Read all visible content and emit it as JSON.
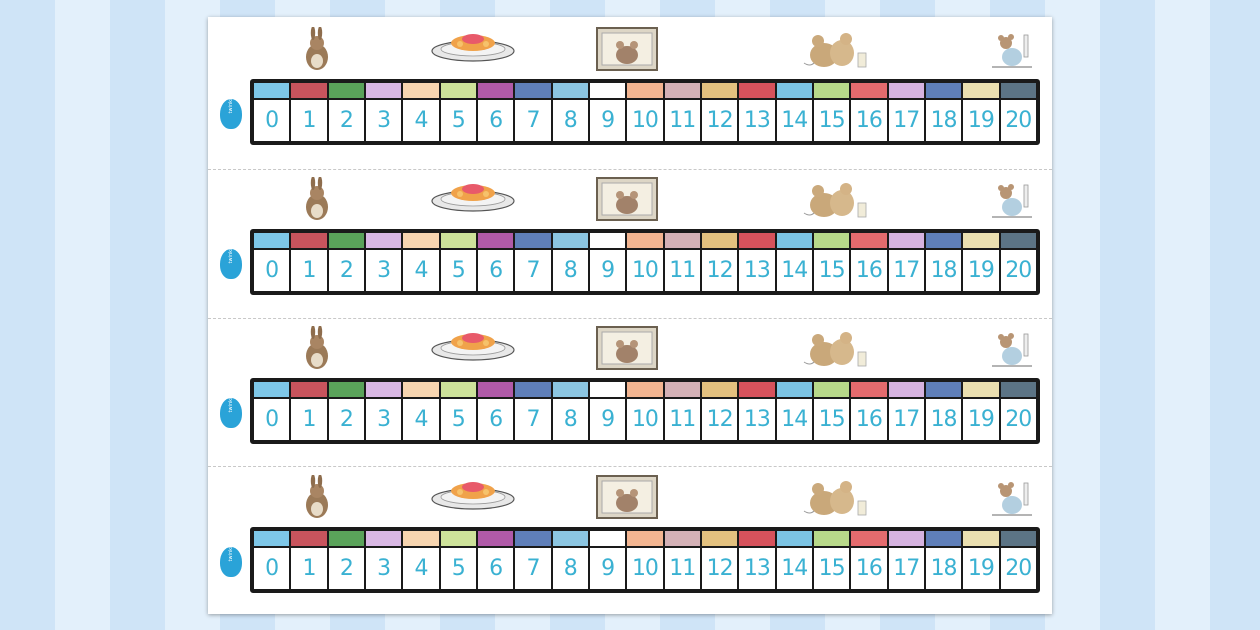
{
  "sheet": {
    "logo_text": "twinkl",
    "strips": [
      {
        "numbers": [
          "0",
          "1",
          "2",
          "3",
          "4",
          "5",
          "6",
          "7",
          "8",
          "9",
          "10",
          "11",
          "12",
          "13",
          "14",
          "15",
          "16",
          "17",
          "18",
          "19",
          "20"
        ]
      },
      {
        "numbers": [
          "0",
          "1",
          "2",
          "3",
          "4",
          "5",
          "6",
          "7",
          "8",
          "9",
          "10",
          "11",
          "12",
          "13",
          "14",
          "15",
          "16",
          "17",
          "18",
          "19",
          "20"
        ]
      },
      {
        "numbers": [
          "0",
          "1",
          "2",
          "3",
          "4",
          "5",
          "6",
          "7",
          "8",
          "9",
          "10",
          "11",
          "12",
          "13",
          "14",
          "15",
          "16",
          "17",
          "18",
          "19",
          "20"
        ]
      },
      {
        "numbers": [
          "0",
          "1",
          "2",
          "3",
          "4",
          "5",
          "6",
          "7",
          "8",
          "9",
          "10",
          "11",
          "12",
          "13",
          "14",
          "15",
          "16",
          "17",
          "18",
          "19",
          "20"
        ]
      }
    ],
    "swatch_colors": [
      "#7ec7e8",
      "#c8545d",
      "#5aa35a",
      "#d9b8e4",
      "#f7d5b0",
      "#cde29a",
      "#b05aa8",
      "#5f7fb9",
      "#8cc6e2",
      "#ffffff",
      "#f3b591",
      "#d4b1b6",
      "#e3c17f",
      "#d6525c",
      "#7cc4e4",
      "#b8d98a",
      "#e46b6e",
      "#d6b3e0",
      "#5f7fb9",
      "#eadfb0",
      "#5c7485"
    ],
    "illustrations": [
      "rabbit-icon",
      "cake-plate-icon",
      "framed-mouse-icon",
      "mice-couple-icon",
      "mouse-with-candle-icon"
    ]
  }
}
